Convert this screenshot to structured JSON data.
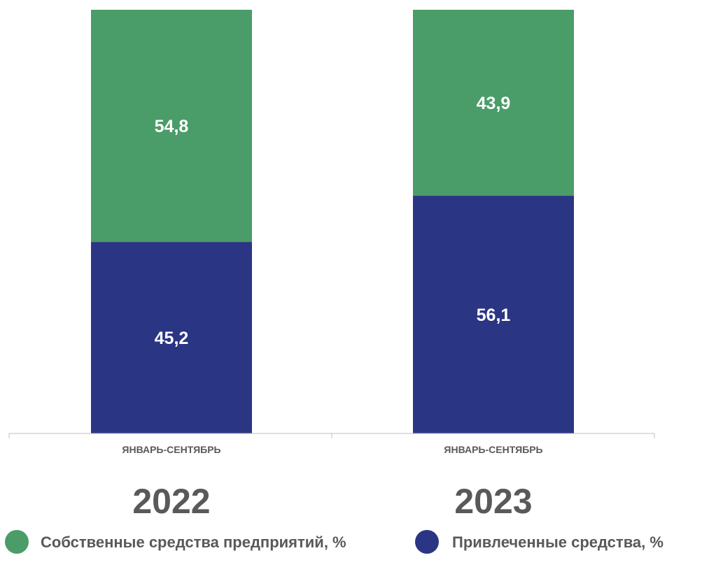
{
  "chart_data": {
    "type": "bar",
    "stacked": true,
    "categories": [
      "ЯНВАРЬ-СЕНТЯБРЬ",
      "ЯНВАРЬ-СЕНТЯБРЬ"
    ],
    "category_years": [
      "2022",
      "2023"
    ],
    "series": [
      {
        "name": "Привлеченные средства, %",
        "color": "#2a3584",
        "values": [
          45.2,
          56.1
        ],
        "labels": [
          "45,2",
          "56,1"
        ]
      },
      {
        "name": "Собственные средства предприятий, %",
        "color": "#4a9c68",
        "values": [
          54.8,
          43.9
        ],
        "labels": [
          "54,8",
          "43,9"
        ]
      }
    ],
    "legend_order": [
      1,
      0
    ],
    "ylim": [
      0,
      100
    ],
    "grid": false,
    "legend_position": "bottom",
    "title": "",
    "xlabel": "",
    "ylabel": ""
  }
}
